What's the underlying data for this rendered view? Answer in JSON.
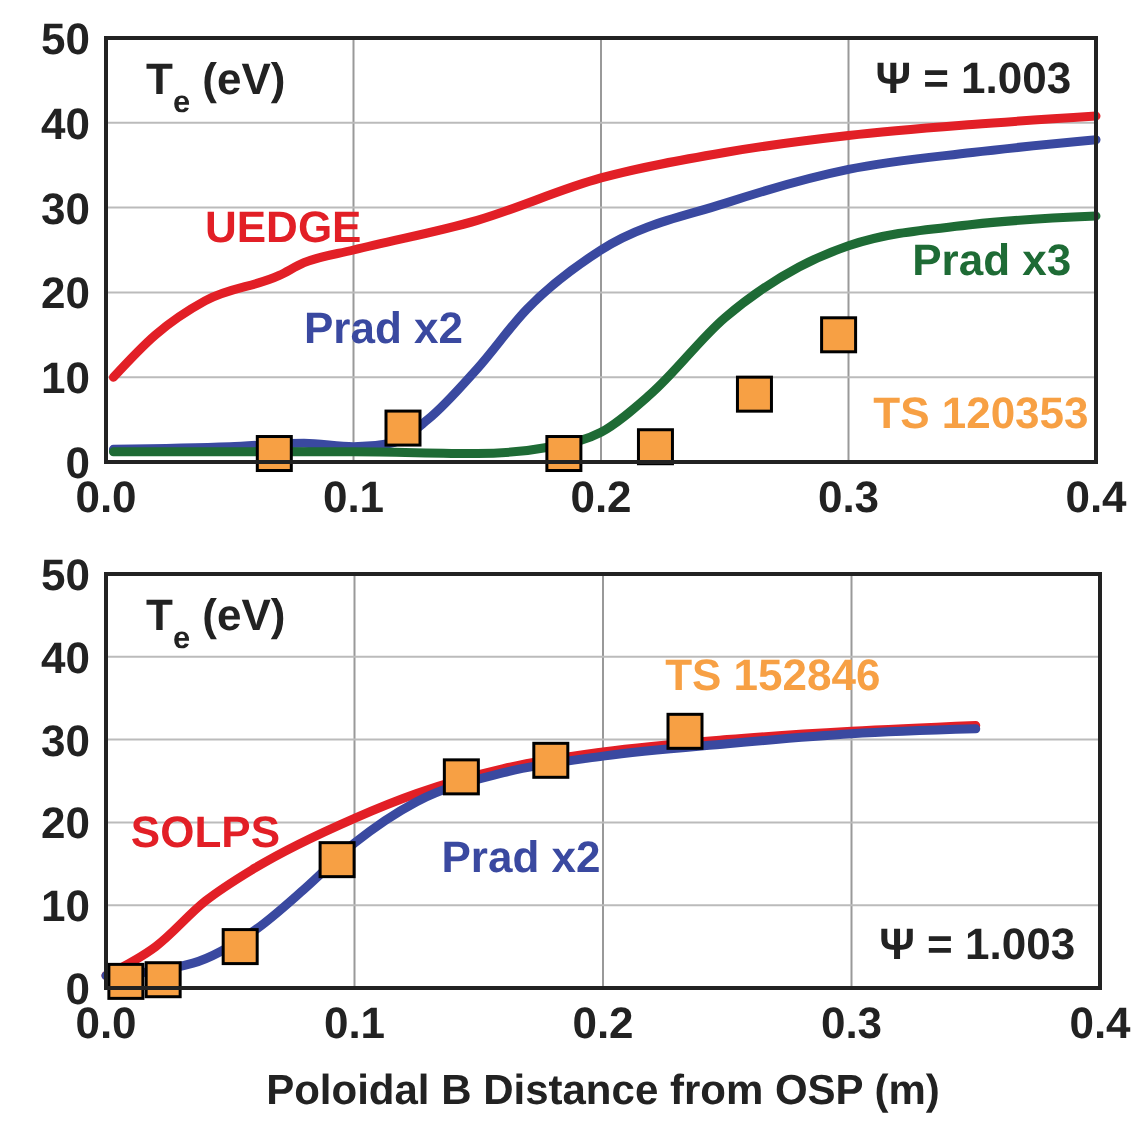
{
  "chart_data": [
    {
      "type": "line",
      "ylabel": "T$_{e}$ (eV)",
      "annotations": [
        "Ψ = 1.003"
      ],
      "xlim": [
        0,
        0.4
      ],
      "ylim": [
        0,
        50
      ],
      "xticks": [
        {
          "value": 0,
          "label": "0.0"
        },
        0.1,
        0.2,
        0.3,
        0.4
      ],
      "yticks": [
        0,
        10,
        20,
        30,
        40,
        50
      ],
      "grid": true,
      "legend": false,
      "marker": "none",
      "line_style": "solid",
      "series": [
        {
          "name": "UEDGE",
          "color": "#e21f26",
          "x": [
            0.003,
            0.02,
            0.04,
            0.07,
            0.08,
            0.1,
            0.15,
            0.2,
            0.25,
            0.3,
            0.35,
            0.4
          ],
          "values": [
            10,
            15,
            19,
            22,
            23.5,
            25,
            28.5,
            33.5,
            36.5,
            38.5,
            39.8,
            40.8
          ]
        },
        {
          "name": "Prad x2",
          "color": "#3a49a0",
          "x": [
            0.003,
            0.05,
            0.08,
            0.1,
            0.115,
            0.13,
            0.15,
            0.17,
            0.2,
            0.25,
            0.3,
            0.35,
            0.4
          ],
          "values": [
            1.5,
            1.8,
            2.2,
            1.8,
            2.2,
            5,
            11,
            18,
            25,
            30.5,
            34.5,
            36.5,
            38
          ]
        },
        {
          "name": "Prad x3",
          "color": "#1e6b35",
          "x": [
            0.003,
            0.05,
            0.1,
            0.15,
            0.18,
            0.2,
            0.22,
            0.25,
            0.28,
            0.3,
            0.35,
            0.4
          ],
          "values": [
            1.2,
            1.2,
            1.2,
            1,
            1.8,
            3.5,
            8,
            17,
            23,
            25.5,
            28,
            29
          ]
        },
        {
          "name": "TS 120353",
          "type": "scatter",
          "marker": "square",
          "color": "#f7a044",
          "x": [
            0.068,
            0.12,
            0.185,
            0.222,
            0.262,
            0.296
          ],
          "values": [
            1,
            4,
            1,
            1.8,
            8,
            15
          ]
        }
      ]
    },
    {
      "type": "line",
      "ylabel": "T$_{e}$ (eV)",
      "xlabel": "Poloidal B Distance from OSP (m)",
      "annotations": [
        "Ψ = 1.003"
      ],
      "xlim": [
        0,
        0.4
      ],
      "ylim": [
        0,
        50
      ],
      "xticks": [
        {
          "value": 0,
          "label": "0.0"
        },
        0.1,
        0.2,
        0.3,
        0.4
      ],
      "yticks": [
        0,
        10,
        20,
        30,
        40,
        50
      ],
      "grid": true,
      "legend": false,
      "marker": "none",
      "line_style": "solid",
      "series": [
        {
          "name": "SOLPS",
          "color": "#e21f26",
          "x": [
            0,
            0.02,
            0.04,
            0.06,
            0.1,
            0.125,
            0.16,
            0.2,
            0.25,
            0.3,
            0.35
          ],
          "values": [
            1.5,
            5,
            10.5,
            14.5,
            20.5,
            23.5,
            26.5,
            28.5,
            30,
            31,
            31.7
          ]
        },
        {
          "name": "Prad x2",
          "color": "#3a49a0",
          "x": [
            0,
            0.035,
            0.06,
            0.08,
            0.1,
            0.125,
            0.16,
            0.2,
            0.25,
            0.3,
            0.35
          ],
          "values": [
            1.5,
            3,
            7,
            12,
            17.5,
            22.5,
            26,
            28,
            29.5,
            30.7,
            31.3
          ]
        },
        {
          "name": "TS 152846",
          "type": "scatter",
          "marker": "square",
          "color": "#f7a044",
          "x": [
            0.008,
            0.023,
            0.054,
            0.093,
            0.143,
            0.179,
            0.233
          ],
          "values": [
            0.8,
            1,
            5,
            15.5,
            25.5,
            27.5,
            31
          ]
        }
      ]
    }
  ]
}
